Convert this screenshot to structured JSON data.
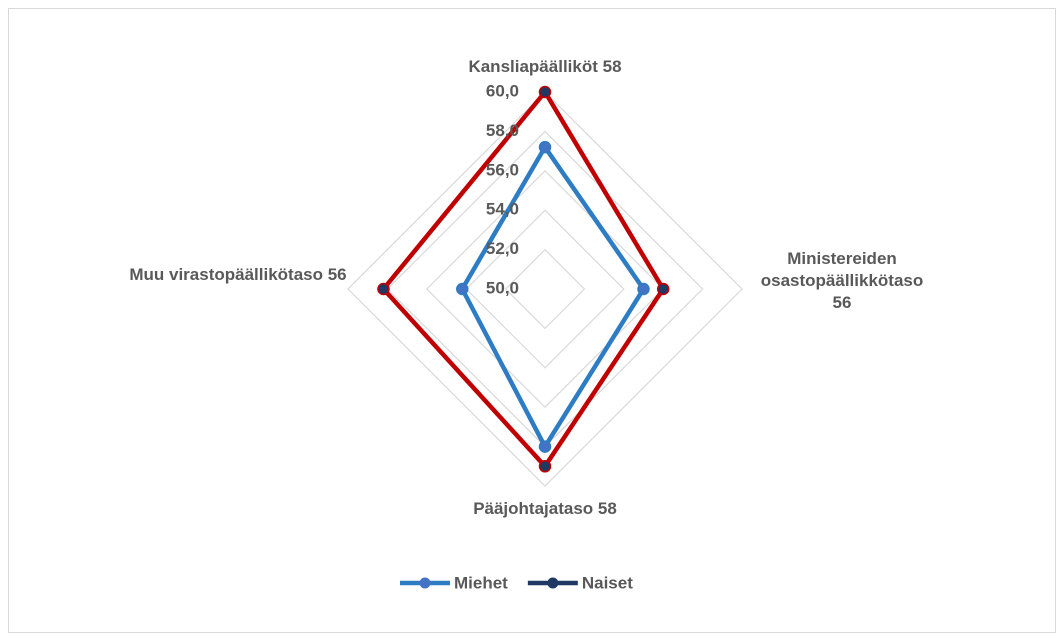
{
  "chart_data": {
    "type": "radar",
    "categories": [
      "Kansliapäälliköt  58",
      "Ministereiden osastopäällikkötaso 56",
      "Pääjohtajataso 58",
      "Muu virastopäällikötaso 56"
    ],
    "ylim": [
      50,
      60
    ],
    "yticks": [
      {
        "value": 50,
        "label": "50,0"
      },
      {
        "value": 52,
        "label": "52,0"
      },
      {
        "value": 54,
        "label": "54,0"
      },
      {
        "value": 56,
        "label": "56,0"
      },
      {
        "value": 58,
        "label": "58,0"
      },
      {
        "value": 60,
        "label": "60,0"
      }
    ],
    "grid": true,
    "legend": "bottom",
    "series": [
      {
        "name": "Miehet",
        "color": "#2e7cc4",
        "marker_color": "#4472c4",
        "values": [
          57.2,
          55.0,
          58.0,
          54.2
        ]
      },
      {
        "name": "Naiset",
        "color": "#c00000",
        "marker_color": "#1f3864",
        "values": [
          60.0,
          56.0,
          59.0,
          58.2
        ]
      }
    ]
  }
}
